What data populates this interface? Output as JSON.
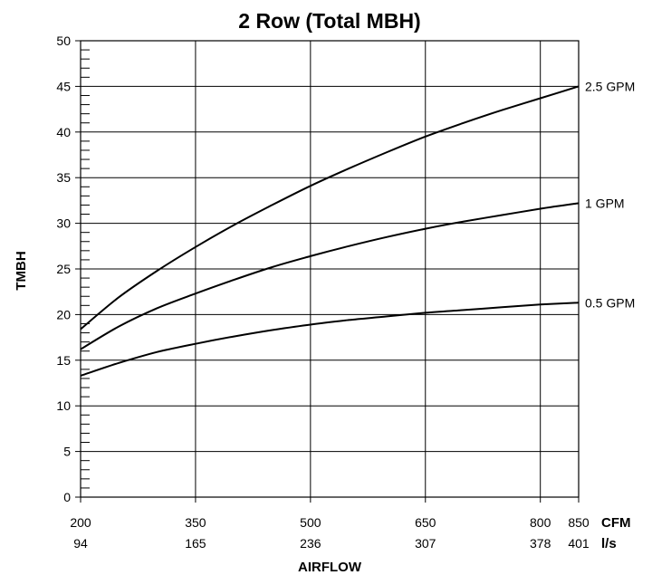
{
  "chart_data": {
    "type": "line",
    "title": "2 Row (Total MBH)",
    "xlabel": "AIRFLOW",
    "ylabel": "TMBH",
    "xlim": [
      200,
      850
    ],
    "ylim": [
      0,
      50
    ],
    "grid": true,
    "x_ticks": [
      {
        "cfm": 200,
        "label": "200",
        "ls": "94"
      },
      {
        "cfm": 350,
        "label": "350",
        "ls": "165"
      },
      {
        "cfm": 500,
        "label": "500",
        "ls": "236"
      },
      {
        "cfm": 650,
        "label": "650",
        "ls": "307"
      },
      {
        "cfm": 800,
        "label": "800",
        "ls": "378"
      },
      {
        "cfm": 850,
        "label": "850",
        "ls": "401"
      }
    ],
    "x_units": [
      "CFM",
      "l/s"
    ],
    "y_ticks": [
      0,
      5,
      10,
      15,
      20,
      25,
      30,
      35,
      40,
      45,
      50
    ],
    "series": [
      {
        "name": "2.5 GPM",
        "x": [
          200,
          250,
          300,
          350,
          400,
          450,
          500,
          550,
          600,
          650,
          700,
          750,
          800,
          850
        ],
        "y": [
          18.4,
          21.9,
          24.8,
          27.4,
          29.8,
          32.0,
          34.1,
          36.0,
          37.8,
          39.5,
          41.0,
          42.4,
          43.7,
          45.0
        ]
      },
      {
        "name": "1 GPM",
        "x": [
          200,
          250,
          300,
          350,
          400,
          450,
          500,
          550,
          600,
          650,
          700,
          750,
          800,
          850
        ],
        "y": [
          16.2,
          18.7,
          20.7,
          22.3,
          23.8,
          25.2,
          26.4,
          27.5,
          28.5,
          29.4,
          30.2,
          30.9,
          31.6,
          32.2
        ]
      },
      {
        "name": "0.5 GPM",
        "x": [
          200,
          250,
          300,
          350,
          400,
          450,
          500,
          550,
          600,
          650,
          700,
          750,
          800,
          850
        ],
        "y": [
          13.3,
          14.7,
          15.9,
          16.8,
          17.6,
          18.3,
          18.9,
          19.4,
          19.8,
          20.2,
          20.5,
          20.8,
          21.1,
          21.3
        ]
      }
    ]
  }
}
